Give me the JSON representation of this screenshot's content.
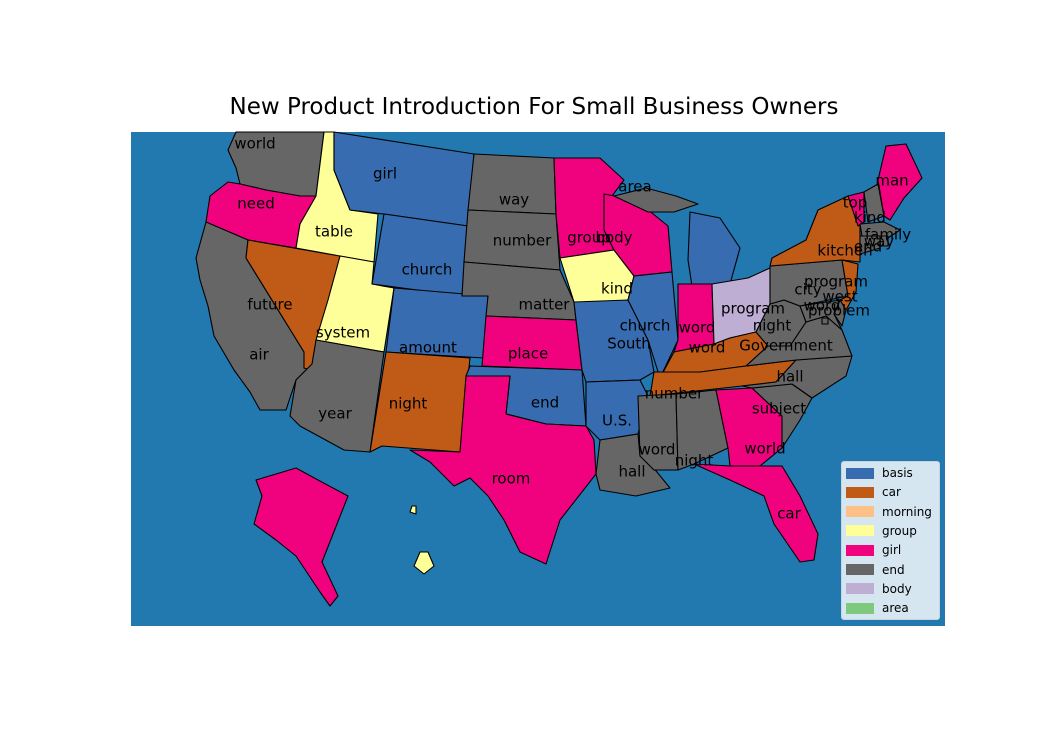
{
  "title": "New Product Introduction For Small Business Owners",
  "colors": {
    "ocean": "#2279b0",
    "basis": "#386cb0",
    "car": "#bf5b17",
    "morning": "#fdc086",
    "group": "#ffff99",
    "girl": "#f0027f",
    "end": "#666666",
    "body": "#beaed4",
    "area": "#7fc97f"
  },
  "legend": [
    {
      "key": "basis",
      "label": "basis"
    },
    {
      "key": "car",
      "label": "car"
    },
    {
      "key": "morning",
      "label": "morning"
    },
    {
      "key": "group",
      "label": "group"
    },
    {
      "key": "girl",
      "label": "girl"
    },
    {
      "key": "end",
      "label": "end"
    },
    {
      "key": "body",
      "label": "body"
    },
    {
      "key": "area",
      "label": "area"
    }
  ],
  "states": [
    {
      "id": "WA",
      "cat": "end",
      "label": "world"
    },
    {
      "id": "OR",
      "cat": "girl",
      "label": "need"
    },
    {
      "id": "CA",
      "cat": "end",
      "label": "air"
    },
    {
      "id": "NV",
      "cat": "car",
      "label": "future"
    },
    {
      "id": "ID",
      "cat": "group",
      "label": "table"
    },
    {
      "id": "UT",
      "cat": "group",
      "label": "system"
    },
    {
      "id": "AZ",
      "cat": "end",
      "label": "year"
    },
    {
      "id": "MT",
      "cat": "basis",
      "label": "girl"
    },
    {
      "id": "WY",
      "cat": "basis",
      "label": "church"
    },
    {
      "id": "CO",
      "cat": "basis",
      "label": "amount"
    },
    {
      "id": "NM",
      "cat": "car",
      "label": "night"
    },
    {
      "id": "ND",
      "cat": "end",
      "label": "way"
    },
    {
      "id": "SD",
      "cat": "end",
      "label": "number"
    },
    {
      "id": "NE",
      "cat": "end",
      "label": "matter"
    },
    {
      "id": "KS",
      "cat": "girl",
      "label": "place"
    },
    {
      "id": "OK",
      "cat": "basis",
      "label": "end"
    },
    {
      "id": "TX",
      "cat": "girl",
      "label": "room"
    },
    {
      "id": "MN",
      "cat": "girl",
      "label": "group"
    },
    {
      "id": "IA",
      "cat": "group",
      "label": "kind"
    },
    {
      "id": "MO",
      "cat": "basis",
      "label": "South"
    },
    {
      "id": "AR",
      "cat": "basis",
      "label": "U.S."
    },
    {
      "id": "LA",
      "cat": "end",
      "label": "hall"
    },
    {
      "id": "WI",
      "cat": "girl",
      "label": "body"
    },
    {
      "id": "UPMI",
      "cat": "end",
      "label": "area"
    },
    {
      "id": "IL",
      "cat": "basis",
      "label": "church"
    },
    {
      "id": "MI",
      "cat": "basis",
      "label": ""
    },
    {
      "id": "IN",
      "cat": "girl",
      "label": "word"
    },
    {
      "id": "OH",
      "cat": "body",
      "label": "program"
    },
    {
      "id": "KY",
      "cat": "car",
      "label": "word"
    },
    {
      "id": "TN",
      "cat": "car",
      "label": "number"
    },
    {
      "id": "MS",
      "cat": "end",
      "label": "word"
    },
    {
      "id": "AL",
      "cat": "end",
      "label": "night"
    },
    {
      "id": "GA",
      "cat": "girl",
      "label": "world"
    },
    {
      "id": "FL",
      "cat": "girl",
      "label": "car"
    },
    {
      "id": "SC",
      "cat": "end",
      "label": "subject"
    },
    {
      "id": "NC",
      "cat": "end",
      "label": "hall"
    },
    {
      "id": "VA",
      "cat": "end",
      "label": "Government"
    },
    {
      "id": "WV",
      "cat": "end",
      "label": "night"
    },
    {
      "id": "PA",
      "cat": "end",
      "label": "city"
    },
    {
      "id": "NY",
      "cat": "car",
      "label": "kitchen"
    },
    {
      "id": "VT",
      "cat": "girl",
      "label": "top"
    },
    {
      "id": "NH",
      "cat": "end",
      "label": "kind"
    },
    {
      "id": "ME",
      "cat": "girl",
      "label": "man"
    },
    {
      "id": "MA",
      "cat": "end",
      "label": "family"
    },
    {
      "id": "RI",
      "cat": "end",
      "label": "way"
    },
    {
      "id": "CT",
      "cat": "end",
      "label": "end"
    },
    {
      "id": "NJ",
      "cat": "car",
      "label": "program"
    },
    {
      "id": "DE",
      "cat": "end",
      "label": "west"
    },
    {
      "id": "MD",
      "cat": "end",
      "label": "word"
    },
    {
      "id": "DC",
      "cat": "end",
      "label": "problem"
    },
    {
      "id": "AK",
      "cat": "girl",
      "label": ""
    },
    {
      "id": "HI",
      "cat": "group",
      "label": ""
    }
  ]
}
